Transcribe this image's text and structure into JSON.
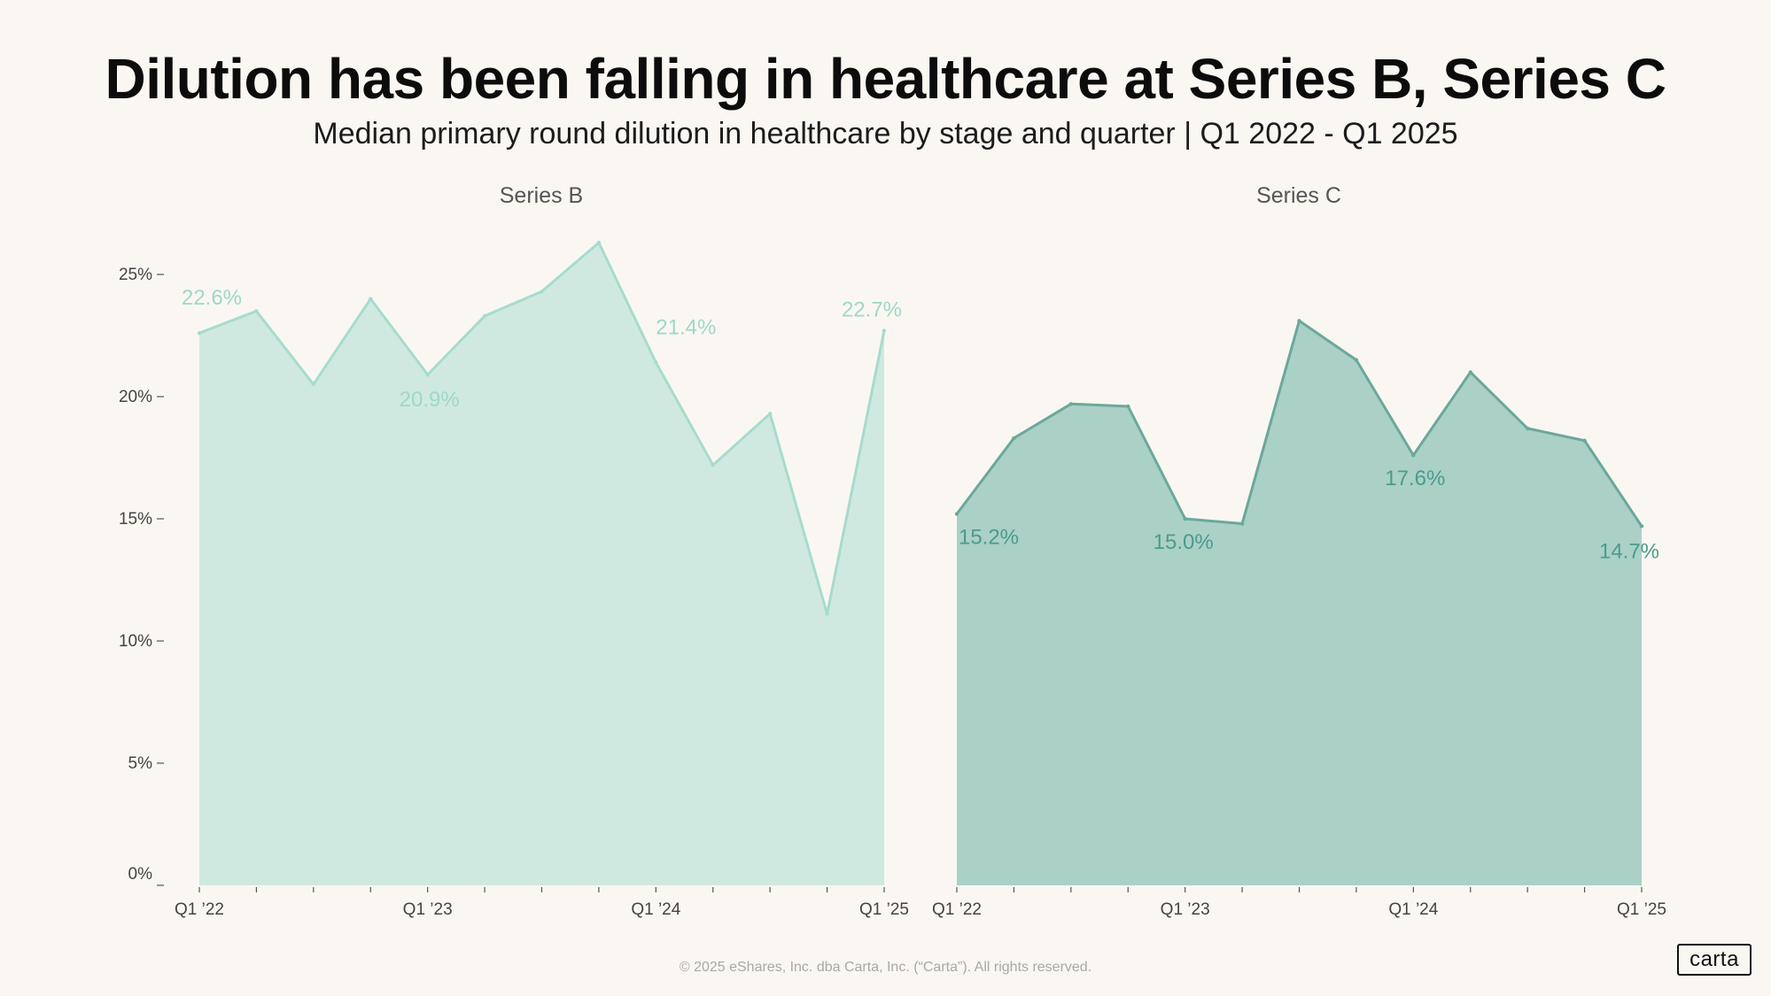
{
  "header": {
    "title": "Dilution has been falling in healthcare at Series B, Series C",
    "subtitle": "Median primary round dilution in healthcare by stage and quarter | Q1 2022 - Q1 2025"
  },
  "footer": {
    "copyright": "© 2025 eShares, Inc. dba Carta, Inc. (“Carta”). All rights reserved.",
    "logo": "carta"
  },
  "colors": {
    "series_b_fill": "#cfe9e1",
    "series_b_line": "#a6dccd",
    "series_b_label": "#9ed8c9",
    "series_c_fill": "#abd0c6",
    "series_c_line": "#6aa89b",
    "series_c_label": "#4c9b8c",
    "axis_text": "#444444",
    "panel_title": "#555555"
  },
  "chart_data": [
    {
      "type": "area",
      "title": "Series B",
      "x": [
        "Q1 '22",
        "Q2 '22",
        "Q3 '22",
        "Q4 '22",
        "Q1 '23",
        "Q2 '23",
        "Q3 '23",
        "Q4 '23",
        "Q1 '24",
        "Q2 '24",
        "Q3 '24",
        "Q4 '24",
        "Q1 '25"
      ],
      "x_tick_labels": [
        "Q1 ’22",
        "Q1 ’23",
        "Q1 ’24",
        "Q1 ’25"
      ],
      "values": [
        22.6,
        23.5,
        20.5,
        24.0,
        20.9,
        23.3,
        24.3,
        26.3,
        21.4,
        17.2,
        19.3,
        11.1,
        22.7
      ],
      "data_labels": [
        {
          "index": 0,
          "text": "22.6%"
        },
        {
          "index": 4,
          "text": "20.9%"
        },
        {
          "index": 8,
          "text": "21.4%"
        },
        {
          "index": 12,
          "text": "22.7%"
        }
      ],
      "y_ticks": [
        "0%",
        "5%",
        "10%",
        "15%",
        "20%",
        "25%"
      ],
      "ylim": [
        0,
        27
      ],
      "xlabel": "",
      "ylabel": "",
      "grid": false
    },
    {
      "type": "area",
      "title": "Series C",
      "x": [
        "Q1 '22",
        "Q2 '22",
        "Q3 '22",
        "Q4 '22",
        "Q1 '23",
        "Q2 '23",
        "Q3 '23",
        "Q4 '23",
        "Q1 '24",
        "Q2 '24",
        "Q3 '24",
        "Q4 '24",
        "Q1 '25"
      ],
      "x_tick_labels": [
        "Q1 ’22",
        "Q1 ’23",
        "Q1 ’24",
        "Q1 ’25"
      ],
      "values": [
        15.2,
        18.3,
        19.7,
        19.6,
        15.0,
        14.8,
        23.1,
        21.5,
        17.6,
        21.0,
        18.7,
        18.2,
        14.7
      ],
      "data_labels": [
        {
          "index": 0,
          "text": "15.2%"
        },
        {
          "index": 4,
          "text": "15.0%"
        },
        {
          "index": 8,
          "text": "17.6%"
        },
        {
          "index": 12,
          "text": "14.7%"
        }
      ],
      "ylim": [
        0,
        27
      ],
      "xlabel": "",
      "ylabel": "",
      "grid": false
    }
  ]
}
